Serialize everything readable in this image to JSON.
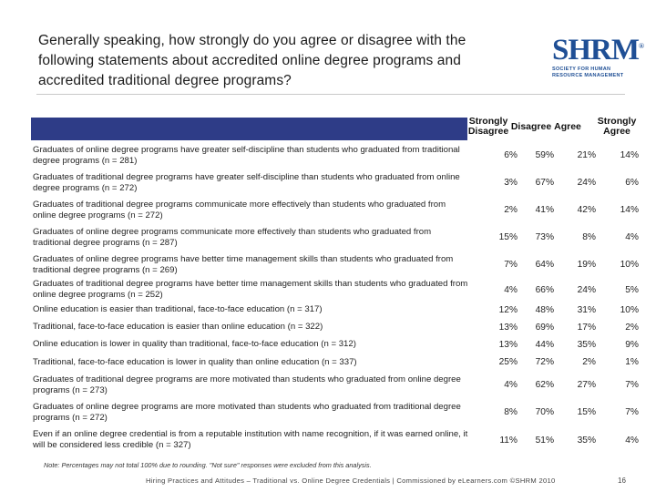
{
  "title": "Generally speaking, how strongly do you agree or disagree with the following statements about accredited online degree programs and accredited traditional degree programs?",
  "logo": {
    "mark": "SHRM",
    "registered": "®",
    "line1": "SOCIETY FOR HUMAN",
    "line2": "RESOURCE MANAGEMENT"
  },
  "columns": {
    "strongly_disagree": "Strongly Disagree",
    "disagree": "Disagree",
    "agree": "Agree",
    "strongly_agree": "Strongly Agree"
  },
  "rows": [
    {
      "statement": "Graduates of online degree programs have greater self-discipline than students who graduated from traditional degree programs (n = 281)",
      "sd": "6%",
      "d": "59%",
      "a": "21%",
      "sa": "14%"
    },
    {
      "statement": "Graduates of traditional degree programs have greater self-discipline than students who graduated from online degree programs (n = 272)",
      "sd": "3%",
      "d": "67%",
      "a": "24%",
      "sa": "6%"
    },
    {
      "statement": "Graduates of traditional degree programs communicate more effectively than students who graduated from online degree programs (n = 272)",
      "sd": "2%",
      "d": "41%",
      "a": "42%",
      "sa": "14%"
    },
    {
      "statement": "Graduates of online degree programs communicate more effectively than students who graduated from traditional degree programs (n = 287)",
      "sd": "15%",
      "d": "73%",
      "a": "8%",
      "sa": "4%"
    },
    {
      "statement": "Graduates of online degree programs have better time management skills than students who graduated from traditional degree programs (n = 269)",
      "sd": "7%",
      "d": "64%",
      "a": "19%",
      "sa": "10%"
    },
    {
      "statement": "Graduates of traditional degree programs have better time management skills than students who graduated from online degree programs (n = 252)",
      "sd": "4%",
      "d": "66%",
      "a": "24%",
      "sa": "5%"
    },
    {
      "statement": "Online education is easier than traditional, face-to-face education (n = 317)",
      "sd": "12%",
      "d": "48%",
      "a": "31%",
      "sa": "10%"
    },
    {
      "statement": "Traditional, face-to-face education is easier than online education (n = 322)",
      "sd": "13%",
      "d": "69%",
      "a": "17%",
      "sa": "2%"
    },
    {
      "statement": "Online education is lower in quality than traditional, face-to-face education (n = 312)",
      "sd": "13%",
      "d": "44%",
      "a": "35%",
      "sa": "9%"
    },
    {
      "statement": "Traditional, face-to-face education is lower in quality than online education (n = 337)",
      "sd": "25%",
      "d": "72%",
      "a": "2%",
      "sa": "1%"
    },
    {
      "statement": "Graduates of traditional degree programs are more motivated than students who graduated from online degree programs (n = 273)",
      "sd": "4%",
      "d": "62%",
      "a": "27%",
      "sa": "7%"
    },
    {
      "statement": "Graduates of online degree programs are more motivated than students who graduated from traditional degree programs (n = 272)",
      "sd": "8%",
      "d": "70%",
      "a": "15%",
      "sa": "7%"
    },
    {
      "statement": "Even if an online degree credential is from a reputable institution with name recognition, if it was earned online, it will be considered less credible (n = 327)",
      "sd": "11%",
      "d": "51%",
      "a": "35%",
      "sa": "4%"
    }
  ],
  "note": "Note: Percentages may not total 100% due to rounding. \"Not sure\" responses were excluded from this analysis.",
  "footer": "Hiring Practices and Attitudes – Traditional vs. Online Degree Credentials | Commissioned by eLearners.com ©SHRM 2010",
  "page_number": "16",
  "colors": {
    "header_bar": "#2e3c87",
    "brand": "#1f4f95"
  }
}
